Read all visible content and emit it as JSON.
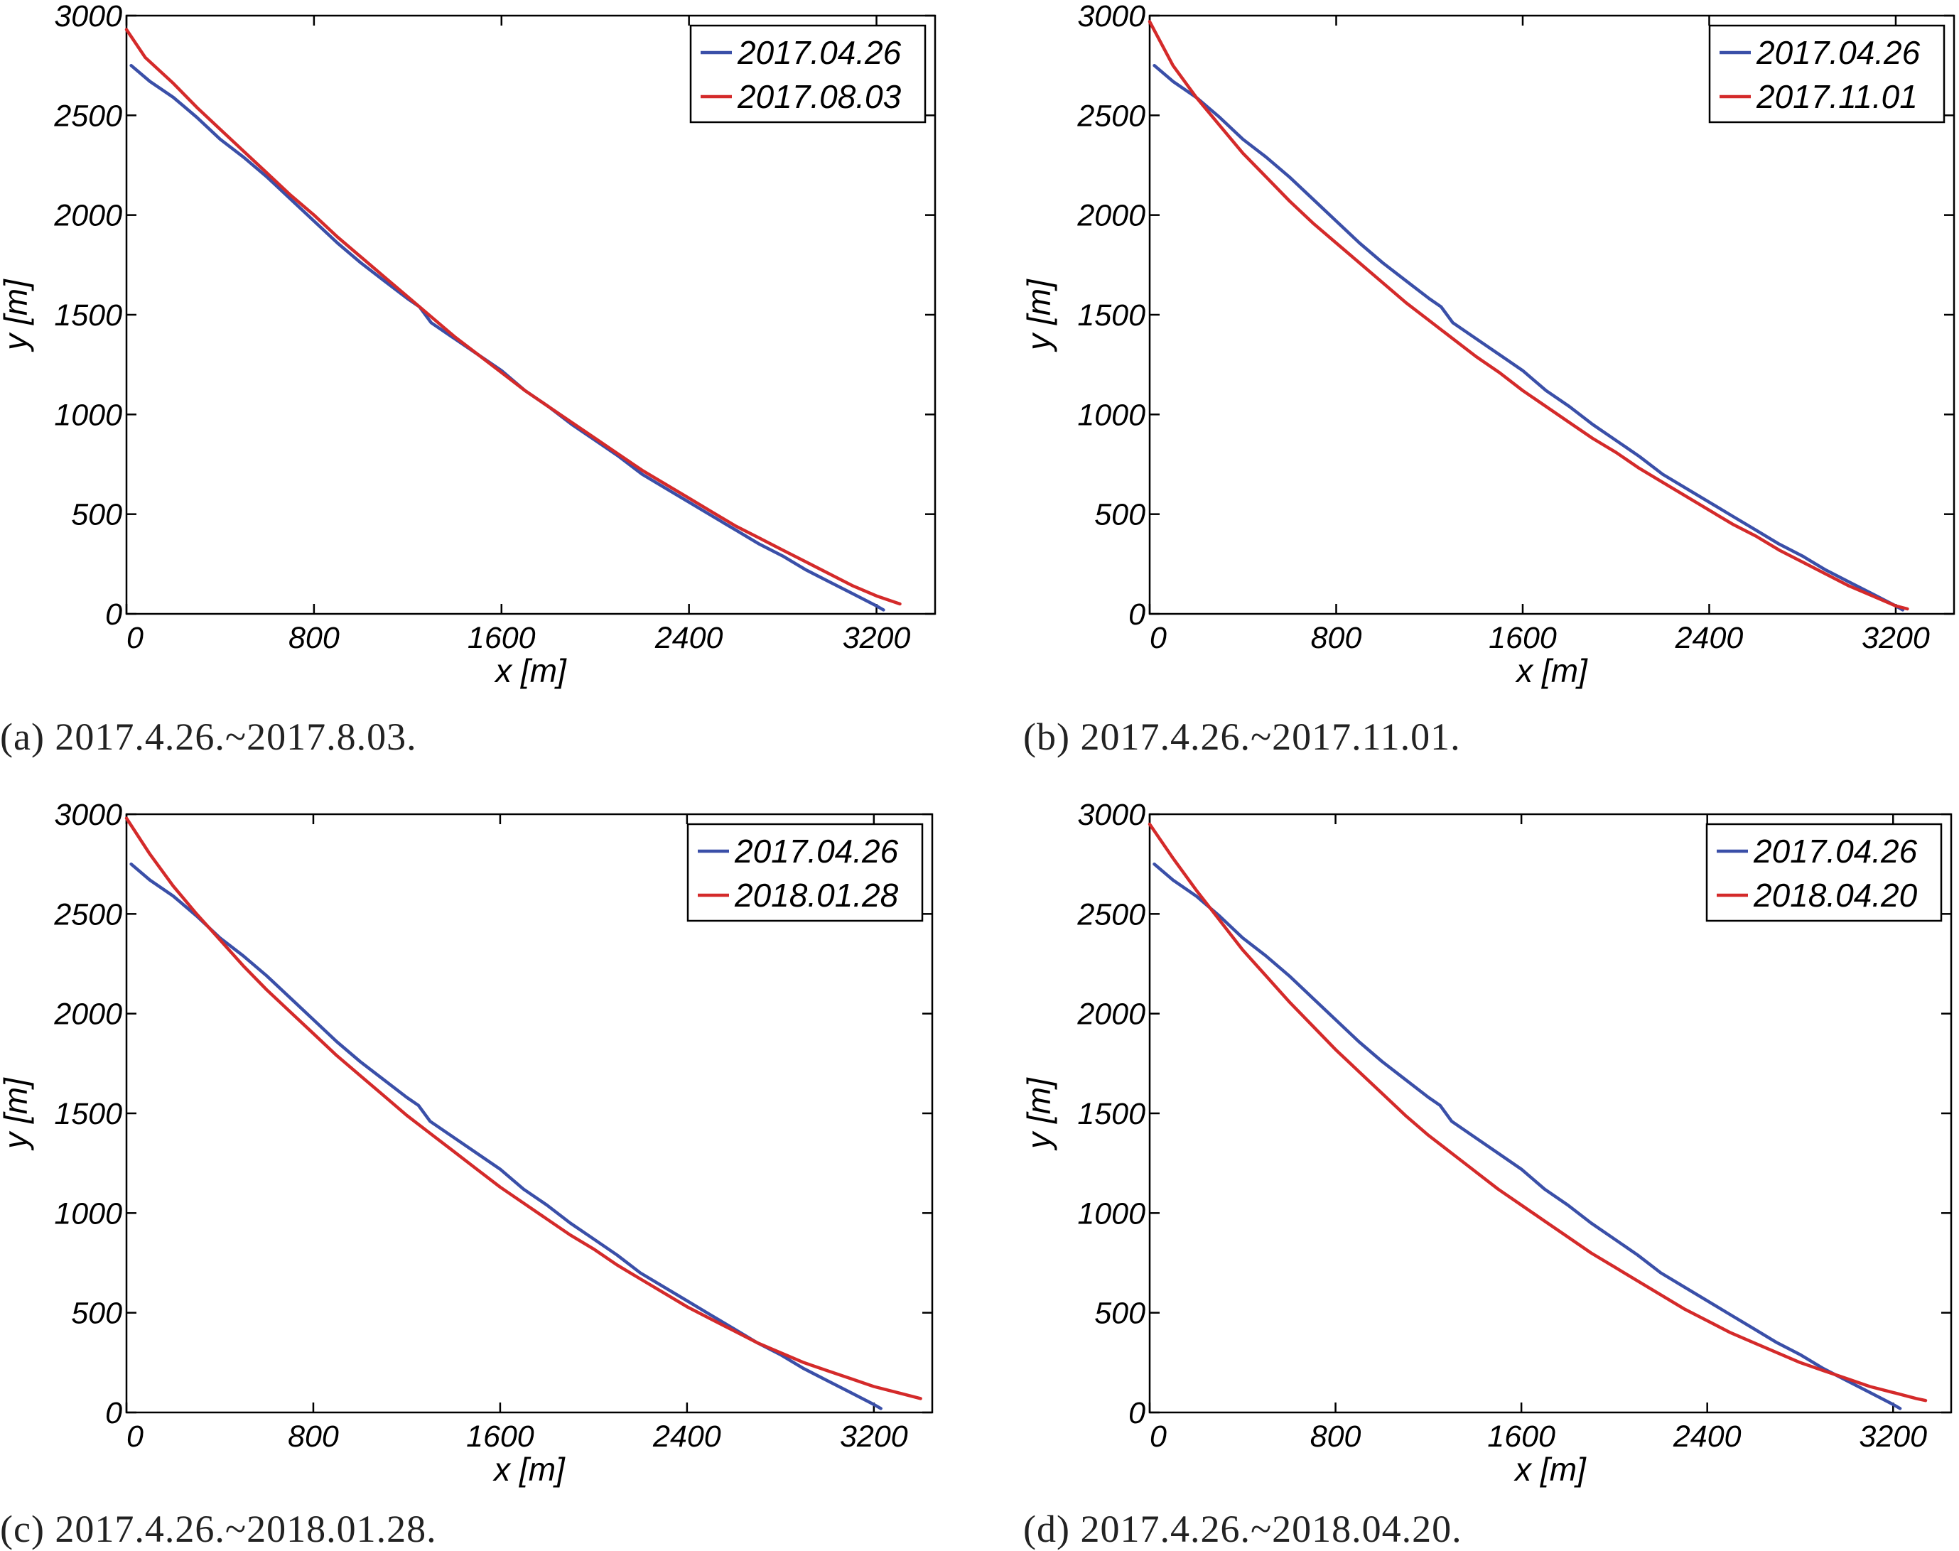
{
  "chart_data": [
    {
      "type": "line",
      "caption": "(a) 2017.4.26.~2017.8.03.",
      "xlabel": "x [m]",
      "ylabel": "y [m]",
      "xlim": [
        0,
        3450
      ],
      "ylim": [
        0,
        3000
      ],
      "xticks": [
        0,
        800,
        1600,
        2400,
        3200
      ],
      "yticks": [
        0,
        500,
        1000,
        1500,
        2000,
        2500,
        3000
      ],
      "grid": false,
      "legend_position": "top-right",
      "series": [
        {
          "name": "2017.04.26",
          "color": "#3a4fa8",
          "x": [
            20,
            100,
            200,
            300,
            400,
            500,
            600,
            700,
            800,
            900,
            1000,
            1100,
            1200,
            1250,
            1300,
            1400,
            1500,
            1600,
            1700,
            1800,
            1900,
            2000,
            2100,
            2200,
            2300,
            2400,
            2500,
            2600,
            2700,
            2800,
            2900,
            3000,
            3100,
            3200,
            3230
          ],
          "y": [
            2750,
            2670,
            2590,
            2490,
            2380,
            2290,
            2190,
            2080,
            1970,
            1860,
            1760,
            1670,
            1580,
            1540,
            1460,
            1380,
            1300,
            1220,
            1120,
            1040,
            950,
            870,
            790,
            700,
            630,
            560,
            490,
            420,
            350,
            290,
            220,
            160,
            100,
            40,
            20
          ]
        },
        {
          "name": "2017.08.03",
          "color": "#d42a2a",
          "x": [
            0,
            80,
            200,
            300,
            400,
            500,
            600,
            700,
            800,
            900,
            1000,
            1100,
            1200,
            1300,
            1400,
            1500,
            1600,
            1700,
            1800,
            1900,
            2000,
            2100,
            2200,
            2300,
            2400,
            2500,
            2600,
            2700,
            2800,
            2900,
            3000,
            3100,
            3200,
            3300
          ],
          "y": [
            2930,
            2790,
            2660,
            2540,
            2430,
            2320,
            2210,
            2100,
            2000,
            1890,
            1790,
            1690,
            1590,
            1490,
            1390,
            1300,
            1210,
            1120,
            1040,
            960,
            880,
            800,
            720,
            650,
            580,
            510,
            440,
            380,
            320,
            260,
            200,
            140,
            90,
            50
          ]
        }
      ]
    },
    {
      "type": "line",
      "caption": "(b) 2017.4.26.~2017.11.01.",
      "xlabel": "x [m]",
      "ylabel": "y [m]",
      "xlim": [
        0,
        3450
      ],
      "ylim": [
        0,
        3000
      ],
      "xticks": [
        0,
        800,
        1600,
        2400,
        3200
      ],
      "yticks": [
        0,
        500,
        1000,
        1500,
        2000,
        2500,
        3000
      ],
      "grid": false,
      "legend_position": "top-right",
      "series": [
        {
          "name": "2017.04.26",
          "color": "#3a4fa8",
          "x": [
            20,
            100,
            200,
            300,
            400,
            500,
            600,
            700,
            800,
            900,
            1000,
            1100,
            1200,
            1250,
            1300,
            1400,
            1500,
            1600,
            1700,
            1800,
            1900,
            2000,
            2100,
            2200,
            2300,
            2400,
            2500,
            2600,
            2700,
            2800,
            2900,
            3000,
            3100,
            3200,
            3230
          ],
          "y": [
            2750,
            2670,
            2590,
            2490,
            2380,
            2290,
            2190,
            2080,
            1970,
            1860,
            1760,
            1670,
            1580,
            1540,
            1460,
            1380,
            1300,
            1220,
            1120,
            1040,
            950,
            870,
            790,
            700,
            630,
            560,
            490,
            420,
            350,
            290,
            220,
            160,
            100,
            40,
            20
          ]
        },
        {
          "name": "2017.11.01",
          "color": "#d42a2a",
          "x": [
            0,
            50,
            100,
            200,
            300,
            400,
            500,
            600,
            700,
            800,
            900,
            1000,
            1100,
            1200,
            1300,
            1400,
            1500,
            1600,
            1700,
            1800,
            1900,
            2000,
            2100,
            2200,
            2300,
            2400,
            2500,
            2600,
            2700,
            2800,
            2900,
            3000,
            3100,
            3200,
            3250
          ],
          "y": [
            2970,
            2860,
            2750,
            2590,
            2450,
            2310,
            2190,
            2070,
            1960,
            1860,
            1760,
            1660,
            1560,
            1470,
            1380,
            1290,
            1210,
            1120,
            1040,
            960,
            880,
            810,
            730,
            660,
            590,
            520,
            450,
            390,
            320,
            260,
            200,
            140,
            90,
            40,
            25
          ]
        }
      ]
    },
    {
      "type": "line",
      "caption": "(c) 2017.4.26.~2018.01.28.",
      "xlabel": "x [m]",
      "ylabel": "y [m]",
      "xlim": [
        0,
        3450
      ],
      "ylim": [
        0,
        3000
      ],
      "xticks": [
        0,
        800,
        1600,
        2400,
        3200
      ],
      "yticks": [
        0,
        500,
        1000,
        1500,
        2000,
        2500,
        3000
      ],
      "grid": false,
      "legend_position": "top-right",
      "series": [
        {
          "name": "2017.04.26",
          "color": "#3a4fa8",
          "x": [
            20,
            100,
            200,
            300,
            400,
            500,
            600,
            700,
            800,
            900,
            1000,
            1100,
            1200,
            1250,
            1300,
            1400,
            1500,
            1600,
            1700,
            1800,
            1900,
            2000,
            2100,
            2200,
            2300,
            2400,
            2500,
            2600,
            2700,
            2800,
            2900,
            3000,
            3100,
            3200,
            3230
          ],
          "y": [
            2750,
            2670,
            2590,
            2490,
            2380,
            2290,
            2190,
            2080,
            1970,
            1860,
            1760,
            1670,
            1580,
            1540,
            1460,
            1380,
            1300,
            1220,
            1120,
            1040,
            950,
            870,
            790,
            700,
            630,
            560,
            490,
            420,
            350,
            290,
            220,
            160,
            100,
            40,
            20
          ]
        },
        {
          "name": "2018.01.28",
          "color": "#d42a2a",
          "x": [
            0,
            100,
            200,
            300,
            400,
            500,
            600,
            700,
            800,
            900,
            1000,
            1100,
            1200,
            1300,
            1400,
            1500,
            1600,
            1700,
            1800,
            1900,
            2000,
            2100,
            2200,
            2300,
            2400,
            2500,
            2600,
            2700,
            2800,
            2900,
            3000,
            3100,
            3200,
            3300,
            3400
          ],
          "y": [
            2980,
            2800,
            2640,
            2500,
            2370,
            2240,
            2120,
            2010,
            1900,
            1790,
            1690,
            1590,
            1490,
            1400,
            1310,
            1220,
            1130,
            1050,
            970,
            890,
            820,
            740,
            670,
            600,
            530,
            470,
            410,
            350,
            300,
            250,
            210,
            170,
            130,
            100,
            70
          ]
        }
      ]
    },
    {
      "type": "line",
      "caption": "(d) 2017.4.26.~2018.04.20.",
      "xlabel": "x [m]",
      "ylabel": "y [m]",
      "xlim": [
        0,
        3450
      ],
      "ylim": [
        0,
        3000
      ],
      "xticks": [
        0,
        800,
        1600,
        2400,
        3200
      ],
      "yticks": [
        0,
        500,
        1000,
        1500,
        2000,
        2500,
        3000
      ],
      "grid": false,
      "legend_position": "top-right",
      "series": [
        {
          "name": "2017.04.26",
          "color": "#3a4fa8",
          "x": [
            20,
            100,
            200,
            300,
            400,
            500,
            600,
            700,
            800,
            900,
            1000,
            1100,
            1200,
            1250,
            1300,
            1400,
            1500,
            1600,
            1700,
            1800,
            1900,
            2000,
            2100,
            2200,
            2300,
            2400,
            2500,
            2600,
            2700,
            2800,
            2900,
            3000,
            3100,
            3200,
            3230
          ],
          "y": [
            2750,
            2670,
            2590,
            2490,
            2380,
            2290,
            2190,
            2080,
            1970,
            1860,
            1760,
            1670,
            1580,
            1540,
            1460,
            1380,
            1300,
            1220,
            1120,
            1040,
            950,
            870,
            790,
            700,
            630,
            560,
            490,
            420,
            350,
            290,
            220,
            160,
            100,
            40,
            20
          ]
        },
        {
          "name": "2018.04.20",
          "color": "#d42a2a",
          "x": [
            0,
            100,
            200,
            300,
            400,
            500,
            600,
            700,
            800,
            900,
            1000,
            1100,
            1200,
            1300,
            1400,
            1500,
            1600,
            1700,
            1800,
            1900,
            2000,
            2100,
            2200,
            2300,
            2400,
            2500,
            2600,
            2700,
            2800,
            2900,
            3000,
            3100,
            3200,
            3300,
            3340
          ],
          "y": [
            2950,
            2780,
            2620,
            2470,
            2320,
            2190,
            2060,
            1940,
            1820,
            1710,
            1600,
            1490,
            1390,
            1300,
            1210,
            1120,
            1040,
            960,
            880,
            800,
            730,
            660,
            590,
            520,
            460,
            400,
            350,
            300,
            250,
            210,
            170,
            130,
            100,
            70,
            60
          ]
        }
      ]
    }
  ]
}
